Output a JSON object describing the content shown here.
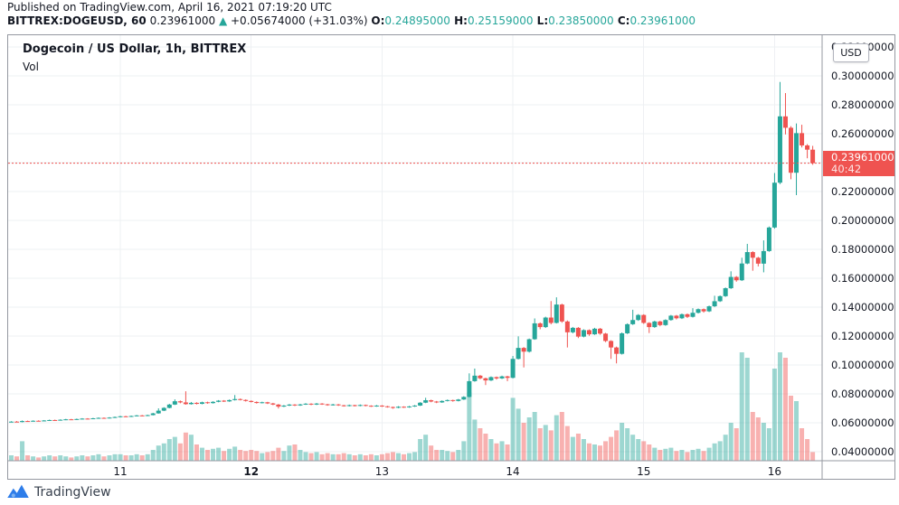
{
  "published_line": "Published on TradingView.com, April 16, 2021 07:19:20 UTC",
  "header": {
    "symbol": "BITTREX:DOGEUSD, 60",
    "last_price": "0.23961000",
    "direction_arrow": "▲",
    "change": "+0.05674000 (+31.03%)",
    "ohlc": [
      {
        "label": "O:",
        "value": "0.24895000"
      },
      {
        "label": "H:",
        "value": "0.25159000"
      },
      {
        "label": "L:",
        "value": "0.23850000"
      },
      {
        "label": "C:",
        "value": "0.23961000"
      }
    ]
  },
  "legend": {
    "title": "Dogecoin / US Dollar, 1h, BITTREX",
    "indicator": "Vol"
  },
  "price_axis": {
    "currency_badge": "USD",
    "ticks": [
      0.32,
      0.3,
      0.28,
      0.26,
      0.24,
      0.22,
      0.2,
      0.18,
      0.16,
      0.14,
      0.12,
      0.1,
      0.08,
      0.06,
      0.04
    ],
    "tick_decimals": 8,
    "last_price_label": "0.23961000",
    "countdown": "40:42"
  },
  "footer": {
    "brand": "TradingView"
  },
  "colors": {
    "up": "#26a69a",
    "down": "#ef5350",
    "volume_up": "rgba(38,166,154,0.45)",
    "volume_down": "rgba(239,83,80,0.45)",
    "price_line": "#ef5350",
    "grid": "#eef0f3",
    "frame": "#9598a1",
    "accent_text": "#26a69a",
    "brand_blue": "#2e7de9"
  },
  "chart_data": {
    "type": "candlestick",
    "title": "Dogecoin / US Dollar, 1h, BITTREX",
    "exchange": "BITTREX",
    "symbol": "DOGEUSD",
    "interval": "60",
    "start": "2021-04-10 04:00 UTC",
    "interval_hours": 1,
    "ylim": [
      0.0338,
      0.3281
    ],
    "price_step": 0.02,
    "last_close": 0.23961,
    "x_day_labels": [
      {
        "index": 20,
        "text": "11",
        "bold": false
      },
      {
        "index": 44,
        "text": "12",
        "bold": true
      },
      {
        "index": 68,
        "text": "13",
        "bold": false
      },
      {
        "index": 92,
        "text": "14",
        "bold": false
      },
      {
        "index": 116,
        "text": "15",
        "bold": false
      },
      {
        "index": 140,
        "text": "16",
        "bold": false
      }
    ],
    "candles": [
      [
        0.0605,
        0.0611,
        0.0602,
        0.0608,
        0.05
      ],
      [
        0.0608,
        0.0612,
        0.0603,
        0.0605,
        0.04
      ],
      [
        0.0605,
        0.0616,
        0.0603,
        0.0612,
        0.18
      ],
      [
        0.0612,
        0.0615,
        0.0607,
        0.061,
        0.05
      ],
      [
        0.061,
        0.0617,
        0.0608,
        0.0614,
        0.04
      ],
      [
        0.0614,
        0.0617,
        0.0609,
        0.0612,
        0.03
      ],
      [
        0.0612,
        0.0619,
        0.061,
        0.0616,
        0.04
      ],
      [
        0.0616,
        0.0622,
        0.0613,
        0.0619,
        0.05
      ],
      [
        0.0619,
        0.0622,
        0.0614,
        0.0617,
        0.04
      ],
      [
        0.0617,
        0.0624,
        0.0615,
        0.0621,
        0.05
      ],
      [
        0.0621,
        0.0627,
        0.0618,
        0.0624,
        0.04
      ],
      [
        0.0624,
        0.0627,
        0.0619,
        0.0622,
        0.03
      ],
      [
        0.0622,
        0.0629,
        0.062,
        0.0626,
        0.04
      ],
      [
        0.0626,
        0.0632,
        0.0623,
        0.0629,
        0.05
      ],
      [
        0.0629,
        0.0632,
        0.0624,
        0.0627,
        0.04
      ],
      [
        0.0627,
        0.0634,
        0.0625,
        0.0631,
        0.05
      ],
      [
        0.0631,
        0.0637,
        0.0628,
        0.0634,
        0.06
      ],
      [
        0.0634,
        0.0637,
        0.0629,
        0.0632,
        0.04
      ],
      [
        0.0632,
        0.0639,
        0.063,
        0.0636,
        0.05
      ],
      [
        0.0636,
        0.0643,
        0.0633,
        0.064,
        0.06
      ],
      [
        0.064,
        0.0648,
        0.0637,
        0.0645,
        0.06
      ],
      [
        0.0645,
        0.0648,
        0.0639,
        0.0642,
        0.05
      ],
      [
        0.0642,
        0.065,
        0.064,
        0.0647,
        0.05
      ],
      [
        0.0647,
        0.0654,
        0.0644,
        0.0651,
        0.06
      ],
      [
        0.0651,
        0.0654,
        0.0645,
        0.0648,
        0.05
      ],
      [
        0.0648,
        0.0656,
        0.0646,
        0.0653,
        0.06
      ],
      [
        0.0653,
        0.0669,
        0.0651,
        0.0665,
        0.1
      ],
      [
        0.0665,
        0.07,
        0.0663,
        0.0684,
        0.14
      ],
      [
        0.0684,
        0.0708,
        0.0681,
        0.0703,
        0.16
      ],
      [
        0.0703,
        0.0731,
        0.07,
        0.0726,
        0.2
      ],
      [
        0.0726,
        0.0762,
        0.0723,
        0.0749,
        0.22
      ],
      [
        0.0749,
        0.0754,
        0.0735,
        0.0741,
        0.16
      ],
      [
        0.0741,
        0.0818,
        0.0725,
        0.0729,
        0.26
      ],
      [
        0.0729,
        0.0744,
        0.0726,
        0.0738,
        0.24
      ],
      [
        0.0738,
        0.0742,
        0.0727,
        0.0731,
        0.15
      ],
      [
        0.0731,
        0.0746,
        0.0728,
        0.0742,
        0.12
      ],
      [
        0.0742,
        0.0746,
        0.0732,
        0.0736,
        0.1
      ],
      [
        0.0736,
        0.0749,
        0.0733,
        0.0745,
        0.11
      ],
      [
        0.0745,
        0.0757,
        0.0742,
        0.0753,
        0.12
      ],
      [
        0.0753,
        0.0757,
        0.0744,
        0.0748,
        0.09
      ],
      [
        0.0748,
        0.0761,
        0.0745,
        0.0757,
        0.11
      ],
      [
        0.0757,
        0.0792,
        0.0754,
        0.0764,
        0.13
      ],
      [
        0.0764,
        0.0768,
        0.0755,
        0.0758,
        0.1
      ],
      [
        0.0758,
        0.0762,
        0.0747,
        0.0751,
        0.09
      ],
      [
        0.0751,
        0.0755,
        0.0741,
        0.0744,
        0.1
      ],
      [
        0.0744,
        0.0748,
        0.0733,
        0.0737,
        0.09
      ],
      [
        0.0737,
        0.0746,
        0.0734,
        0.0742,
        0.07
      ],
      [
        0.0742,
        0.0745,
        0.073,
        0.0734,
        0.08
      ],
      [
        0.0734,
        0.0738,
        0.0722,
        0.0726,
        0.09
      ],
      [
        0.0726,
        0.073,
        0.0699,
        0.0712,
        0.12
      ],
      [
        0.0712,
        0.0723,
        0.0709,
        0.0719,
        0.09
      ],
      [
        0.0719,
        0.073,
        0.0716,
        0.0726,
        0.14
      ],
      [
        0.0726,
        0.0729,
        0.0716,
        0.072,
        0.15
      ],
      [
        0.072,
        0.0731,
        0.0717,
        0.0727,
        0.1
      ],
      [
        0.0727,
        0.0736,
        0.0724,
        0.0732,
        0.08
      ],
      [
        0.0732,
        0.0735,
        0.0722,
        0.0726,
        0.07
      ],
      [
        0.0726,
        0.0737,
        0.0723,
        0.0733,
        0.08
      ],
      [
        0.0733,
        0.0736,
        0.0724,
        0.0728,
        0.06
      ],
      [
        0.0728,
        0.0731,
        0.0718,
        0.0722,
        0.07
      ],
      [
        0.0722,
        0.0731,
        0.0719,
        0.0727,
        0.06
      ],
      [
        0.0727,
        0.073,
        0.0717,
        0.0721,
        0.06
      ],
      [
        0.0721,
        0.0724,
        0.0712,
        0.0716,
        0.07
      ],
      [
        0.0716,
        0.0726,
        0.0713,
        0.0722,
        0.06
      ],
      [
        0.0722,
        0.0725,
        0.0713,
        0.0717,
        0.05
      ],
      [
        0.0717,
        0.0727,
        0.0714,
        0.0723,
        0.06
      ],
      [
        0.0723,
        0.0726,
        0.0714,
        0.0718,
        0.05
      ],
      [
        0.0718,
        0.0721,
        0.071,
        0.0714,
        0.06
      ],
      [
        0.0714,
        0.0723,
        0.0711,
        0.0719,
        0.05
      ],
      [
        0.0719,
        0.0722,
        0.071,
        0.0714,
        0.06
      ],
      [
        0.0714,
        0.0717,
        0.0705,
        0.0709,
        0.07
      ],
      [
        0.0709,
        0.0712,
        0.0697,
        0.0704,
        0.08
      ],
      [
        0.0704,
        0.0715,
        0.0701,
        0.0711,
        0.07
      ],
      [
        0.0711,
        0.0714,
        0.0703,
        0.0707,
        0.06
      ],
      [
        0.0707,
        0.0717,
        0.0704,
        0.0713,
        0.07
      ],
      [
        0.0713,
        0.0723,
        0.071,
        0.0719,
        0.08
      ],
      [
        0.0719,
        0.0743,
        0.0716,
        0.0739,
        0.2
      ],
      [
        0.0739,
        0.0773,
        0.0736,
        0.0756,
        0.24
      ],
      [
        0.0756,
        0.076,
        0.0742,
        0.0747,
        0.14
      ],
      [
        0.0747,
        0.0751,
        0.0736,
        0.0741,
        0.1
      ],
      [
        0.0741,
        0.0755,
        0.0738,
        0.0751,
        0.1
      ],
      [
        0.0751,
        0.0761,
        0.0748,
        0.0757,
        0.09
      ],
      [
        0.0757,
        0.076,
        0.0746,
        0.0751,
        0.08
      ],
      [
        0.0751,
        0.0765,
        0.0748,
        0.0761,
        0.1
      ],
      [
        0.0761,
        0.0784,
        0.0758,
        0.0779,
        0.18
      ],
      [
        0.0779,
        0.0942,
        0.0776,
        0.0888,
        0.63
      ],
      [
        0.0888,
        0.0975,
        0.0884,
        0.0926,
        0.38
      ],
      [
        0.0926,
        0.0931,
        0.0901,
        0.0908,
        0.3
      ],
      [
        0.0908,
        0.0912,
        0.0861,
        0.0893,
        0.25
      ],
      [
        0.0893,
        0.0921,
        0.0889,
        0.0916,
        0.2
      ],
      [
        0.0916,
        0.092,
        0.0899,
        0.0907,
        0.16
      ],
      [
        0.0907,
        0.0926,
        0.0903,
        0.0921,
        0.18
      ],
      [
        0.0921,
        0.0925,
        0.0888,
        0.0911,
        0.15
      ],
      [
        0.0911,
        0.1062,
        0.0907,
        0.1042,
        0.58
      ],
      [
        0.1042,
        0.1198,
        0.1038,
        0.1118,
        0.48
      ],
      [
        0.1118,
        0.1124,
        0.0983,
        0.1092,
        0.35
      ],
      [
        0.1092,
        0.1183,
        0.1086,
        0.1178,
        0.4
      ],
      [
        0.1178,
        0.1322,
        0.1174,
        0.1288,
        0.45
      ],
      [
        0.1288,
        0.1294,
        0.1247,
        0.1262,
        0.3
      ],
      [
        0.1262,
        0.1334,
        0.1256,
        0.1328,
        0.33
      ],
      [
        0.1328,
        0.1442,
        0.1281,
        0.1291,
        0.28
      ],
      [
        0.1291,
        0.1468,
        0.1287,
        0.1418,
        0.42
      ],
      [
        0.1418,
        0.1424,
        0.1292,
        0.1301,
        0.45
      ],
      [
        0.1301,
        0.1308,
        0.1121,
        0.1226,
        0.32
      ],
      [
        0.1226,
        0.1263,
        0.1219,
        0.1257,
        0.22
      ],
      [
        0.1257,
        0.1262,
        0.1186,
        0.1196,
        0.25
      ],
      [
        0.1196,
        0.1247,
        0.1191,
        0.1241,
        0.2
      ],
      [
        0.1241,
        0.1246,
        0.1202,
        0.1212,
        0.16
      ],
      [
        0.1212,
        0.1257,
        0.1208,
        0.1251,
        0.15
      ],
      [
        0.1251,
        0.1256,
        0.1209,
        0.1217,
        0.14
      ],
      [
        0.1217,
        0.1222,
        0.1158,
        0.1166,
        0.18
      ],
      [
        0.1166,
        0.1171,
        0.1042,
        0.1121,
        0.22
      ],
      [
        0.1121,
        0.1127,
        0.1011,
        0.1077,
        0.28
      ],
      [
        0.1077,
        0.1225,
        0.1072,
        0.1219,
        0.35
      ],
      [
        0.1219,
        0.1288,
        0.1214,
        0.1282,
        0.3
      ],
      [
        0.1282,
        0.1382,
        0.1277,
        0.1311,
        0.24
      ],
      [
        0.1311,
        0.1352,
        0.1305,
        0.1346,
        0.2
      ],
      [
        0.1346,
        0.1351,
        0.1284,
        0.1291,
        0.18
      ],
      [
        0.1291,
        0.1296,
        0.1221,
        0.1262,
        0.15
      ],
      [
        0.1262,
        0.1306,
        0.1257,
        0.1301,
        0.12
      ],
      [
        0.1301,
        0.1306,
        0.1268,
        0.1276,
        0.1
      ],
      [
        0.1276,
        0.1316,
        0.1271,
        0.1311,
        0.11
      ],
      [
        0.1311,
        0.1346,
        0.1306,
        0.1341,
        0.12
      ],
      [
        0.1341,
        0.1346,
        0.1315,
        0.1323,
        0.09
      ],
      [
        0.1323,
        0.1356,
        0.1318,
        0.1351,
        0.1
      ],
      [
        0.1351,
        0.1356,
        0.1325,
        0.1333,
        0.08
      ],
      [
        0.1333,
        0.1393,
        0.1328,
        0.1361,
        0.1
      ],
      [
        0.1361,
        0.1391,
        0.1356,
        0.1386,
        0.11
      ],
      [
        0.1386,
        0.1391,
        0.1362,
        0.1371,
        0.09
      ],
      [
        0.1371,
        0.1411,
        0.1366,
        0.1406,
        0.12
      ],
      [
        0.1406,
        0.1479,
        0.1401,
        0.1441,
        0.16
      ],
      [
        0.1441,
        0.1481,
        0.1436,
        0.1476,
        0.18
      ],
      [
        0.1476,
        0.1536,
        0.1471,
        0.1531,
        0.24
      ],
      [
        0.1531,
        0.1648,
        0.1526,
        0.1609,
        0.35
      ],
      [
        0.1609,
        0.1615,
        0.1576,
        0.1586,
        0.3
      ],
      [
        0.1586,
        0.1742,
        0.1581,
        0.1702,
        1.0
      ],
      [
        0.1702,
        0.1838,
        0.1697,
        0.1781,
        0.95
      ],
      [
        0.1781,
        0.1787,
        0.1652,
        0.1742,
        0.45
      ],
      [
        0.1742,
        0.1748,
        0.1682,
        0.1701,
        0.4
      ],
      [
        0.1701,
        0.1862,
        0.1641,
        0.1788,
        0.35
      ],
      [
        0.1788,
        0.1958,
        0.1783,
        0.1951,
        0.3
      ],
      [
        0.1951,
        0.2328,
        0.1943,
        0.2261,
        0.85
      ],
      [
        0.2261,
        0.2958,
        0.2251,
        0.272,
        1.0
      ],
      [
        0.272,
        0.2881,
        0.2595,
        0.2641,
        0.95
      ],
      [
        0.2641,
        0.2652,
        0.2285,
        0.233,
        0.6
      ],
      [
        0.233,
        0.2671,
        0.2175,
        0.2604,
        0.55
      ],
      [
        0.2604,
        0.2662,
        0.2505,
        0.2519,
        0.3
      ],
      [
        0.2519,
        0.2528,
        0.243,
        0.24895,
        0.2
      ],
      [
        0.24895,
        0.25159,
        0.2385,
        0.23961,
        0.08
      ]
    ]
  }
}
